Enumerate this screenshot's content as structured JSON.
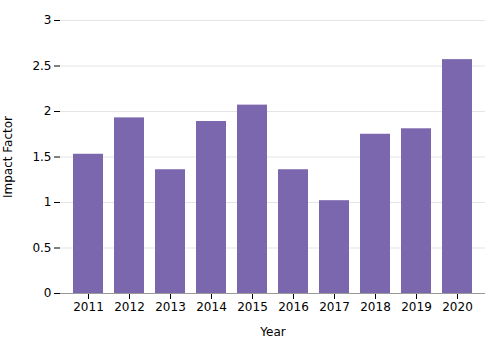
{
  "chart_data": {
    "type": "bar",
    "xlabel": "Year",
    "ylabel": "Impact Factor",
    "categories": [
      "2011",
      "2012",
      "2013",
      "2014",
      "2015",
      "2016",
      "2017",
      "2018",
      "2019",
      "2020"
    ],
    "values": [
      1.53,
      1.93,
      1.36,
      1.89,
      2.07,
      1.36,
      1.02,
      1.75,
      1.81,
      2.57
    ],
    "color": "#7B67AE",
    "ylim": [
      0,
      3.0
    ],
    "yticks": [
      0,
      0.5,
      1,
      1.5,
      2,
      2.5,
      3
    ],
    "grid": true
  }
}
